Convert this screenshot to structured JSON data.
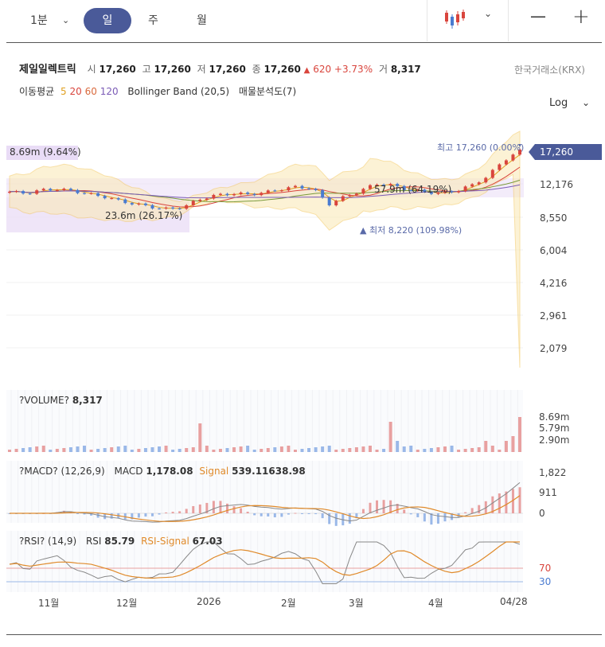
{
  "toolbar": {
    "interval_label": "1분",
    "tabs": [
      "일",
      "주",
      "월"
    ],
    "active_tab": "일",
    "minus_label": "—",
    "plus_label": "+"
  },
  "quote": {
    "name": "제일일렉트릭",
    "open_label": "시",
    "open": "17,260",
    "high_label": "고",
    "high": "17,260",
    "low_label": "저",
    "low": "17,260",
    "close_label": "종",
    "close": "17,260",
    "change_arrow": "▲",
    "change": "620",
    "change_pct": "+3.73%",
    "volume_label": "거",
    "volume": "8,317",
    "exchange": "한국거래소(KRX)"
  },
  "indicators": {
    "ma_label": "이동평균",
    "ma_periods": [
      "5",
      "20",
      "60",
      "120"
    ],
    "ma_colors": [
      "#e0a020",
      "#d9453d",
      "#7a9a3a",
      "#7b5bb6"
    ],
    "bollinger": "Bollinger Band",
    "bollinger_params": "(20,5)",
    "profile": "매물분석도(7)"
  },
  "scale_label": "Log",
  "price_panel": {
    "y_ticks": [
      "12,176",
      "8,550",
      "6,004",
      "4,216",
      "2,961",
      "2,079"
    ],
    "current_price": "17,260",
    "high_marker": "최고 17,260 (0.00%)",
    "low_marker": "▲ 최저 8,220 (109.98%)",
    "profile_labels": [
      "8.69m (9.64%)",
      "23.6m (26.17%)",
      "57.9m (64.19%)"
    ]
  },
  "volume_panel": {
    "title": "?VOLUME?",
    "value": "8,317",
    "y_ticks": [
      "8.69m",
      "5.79m",
      "2.90m"
    ]
  },
  "macd_panel": {
    "title": "?MACD? (12,26,9)",
    "macd_label": "MACD",
    "macd_value": "1,178.08",
    "signal_label": "Signal",
    "signal_value": "539.11638.98",
    "y_ticks": [
      "1,822",
      "911",
      "0"
    ]
  },
  "rsi_panel": {
    "title": "?RSI? (14,9)",
    "rsi_label": "RSI",
    "rsi_value": "85.79",
    "signal_label": "RSI-Signal",
    "signal_value": "67.03",
    "y_ticks": [
      "70",
      "30"
    ]
  },
  "x_axis": [
    "11월",
    "12월",
    "2026",
    "2월",
    "3월",
    "4월",
    "04/28"
  ],
  "colors": {
    "up": "#d9453d",
    "down": "#4a7bd0",
    "accent": "#4a5a99",
    "band": "#fbe9b4",
    "profile": "#e9dcf6"
  },
  "chart_data": {
    "type": "candlestick",
    "scale": "log",
    "series": [
      {
        "name": "close",
        "values": [
          11200,
          11000,
          11400,
          11500,
          11300,
          10900,
          10600,
          10100,
          9800,
          9500,
          9300,
          9600,
          10400,
          10800,
          11000,
          10900,
          11100,
          11500,
          11800,
          11600,
          9800,
          10600,
          11300,
          12200,
          12000,
          11400,
          11200,
          11000,
          11300,
          12000,
          13200,
          15600,
          17260
        ]
      }
    ]
  }
}
